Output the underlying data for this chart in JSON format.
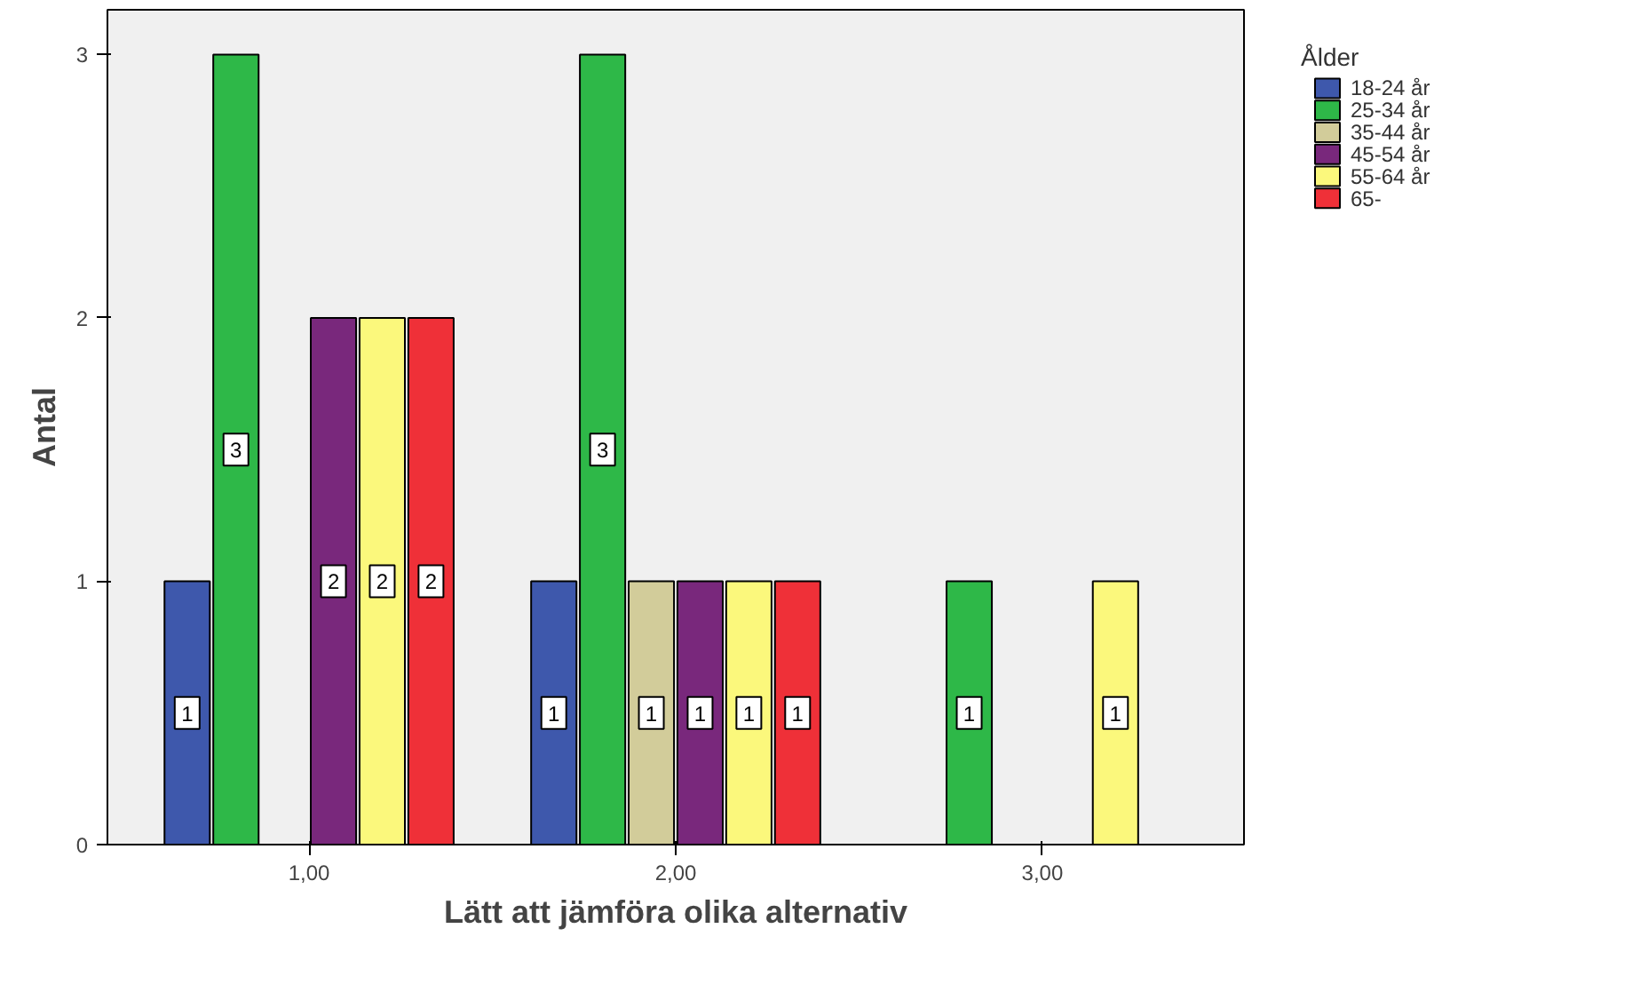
{
  "chart_data": {
    "type": "bar",
    "xlabel": "Lätt att jämföra olika alternativ",
    "ylabel": "Antal",
    "legend_title": "Ålder",
    "categories": [
      "1,00",
      "2,00",
      "3,00"
    ],
    "series": [
      {
        "name": "18-24 år",
        "color": "#3e58ac",
        "values": [
          1,
          1,
          null
        ]
      },
      {
        "name": "25-34 år",
        "color": "#2eb848",
        "values": [
          3,
          3,
          1
        ]
      },
      {
        "name": "35-44 år",
        "color": "#d2cc9a",
        "values": [
          null,
          1,
          null
        ]
      },
      {
        "name": "45-54 år",
        "color": "#79287c",
        "values": [
          2,
          1,
          null
        ]
      },
      {
        "name": "55-64 år",
        "color": "#fbf87c",
        "values": [
          2,
          1,
          1
        ]
      },
      {
        "name": "65-",
        "color": "#ef3038",
        "values": [
          2,
          1,
          null
        ]
      }
    ],
    "ylim": [
      0,
      3.17
    ],
    "yticks": [
      0,
      1,
      2,
      3
    ],
    "data_labels": true,
    "legend": "right",
    "grid": false
  }
}
